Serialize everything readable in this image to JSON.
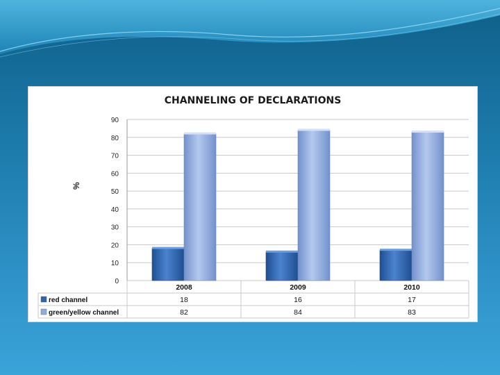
{
  "chart_data": {
    "type": "bar",
    "title": "CHANNELING OF DECLARATIONS",
    "ylabel": "%",
    "xlabel": "",
    "categories": [
      "2008",
      "2009",
      "2010"
    ],
    "series": [
      {
        "name": "red channel",
        "values": [
          18,
          16,
          17
        ],
        "color": "#2f66ad"
      },
      {
        "name": "green/yellow channel",
        "values": [
          82,
          84,
          83
        ],
        "color": "#8faee0"
      }
    ],
    "ylim": [
      0,
      90
    ],
    "yticks": [
      "0",
      "10",
      "20",
      "30",
      "40",
      "50",
      "60",
      "70",
      "80",
      "90"
    ],
    "grid": true,
    "legend": "data-table-below"
  }
}
